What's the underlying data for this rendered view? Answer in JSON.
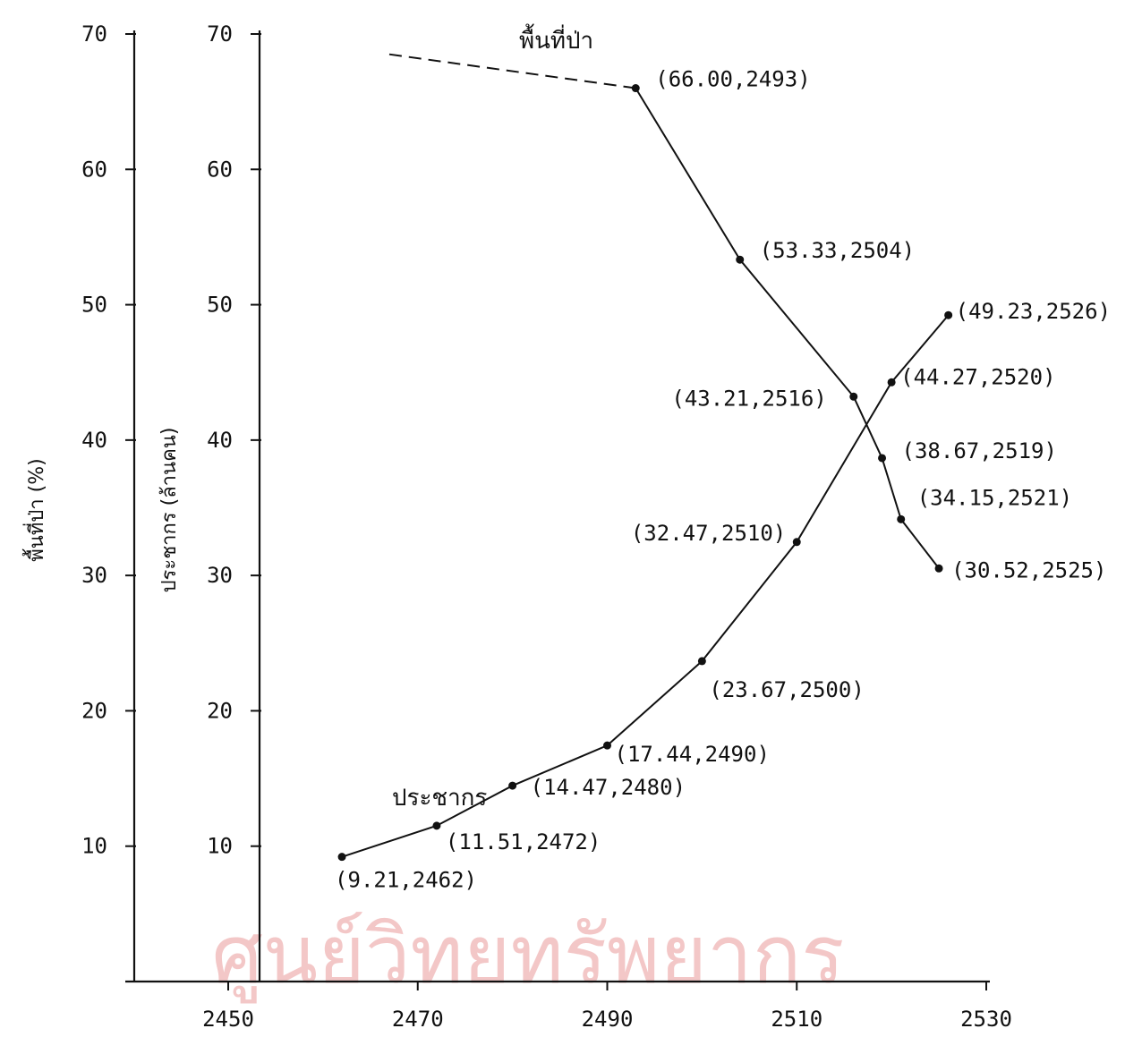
{
  "chart_data": {
    "type": "line",
    "title": "",
    "xlabel": "",
    "y_axes": [
      {
        "label": "พื้นที่ป่า (%)",
        "ticks": [
          10,
          20,
          30,
          40,
          50,
          60,
          70
        ]
      },
      {
        "label": "ประชากร (ล้านคน)",
        "ticks": [
          10,
          20,
          30,
          40,
          50,
          60,
          70
        ]
      }
    ],
    "xlim": [
      2440,
      2535
    ],
    "ylim": [
      0,
      70
    ],
    "x_ticks": [
      2450,
      2470,
      2490,
      2510,
      2530
    ],
    "series": [
      {
        "name": "พื้นที่ป่า",
        "x": [
          2493,
          2504,
          2516,
          2519,
          2521,
          2525
        ],
        "y": [
          66.0,
          53.33,
          43.21,
          38.67,
          34.15,
          30.52
        ],
        "labels": [
          "(66.00,2493)",
          "(53.33,2504)",
          "(43.21,2516)",
          "(38.67,2519)",
          "(34.15,2521)",
          "(30.52,2525)"
        ],
        "extrapolated_start": {
          "x": 2467,
          "y": 68.5
        }
      },
      {
        "name": "ประชากร",
        "x": [
          2462,
          2472,
          2480,
          2490,
          2500,
          2510,
          2520,
          2526
        ],
        "y": [
          9.21,
          11.51,
          14.47,
          17.44,
          23.67,
          32.47,
          44.27,
          49.23
        ],
        "labels": [
          "(9.21,2462)",
          "(11.51,2472)",
          "(14.47,2480)",
          "(17.44,2490)",
          "(23.67,2500)",
          "(32.47,2510)",
          "(44.27,2520)",
          "(49.23,2526)"
        ]
      }
    ],
    "watermark": "ศูนย์วิทยทรัพยากร"
  }
}
